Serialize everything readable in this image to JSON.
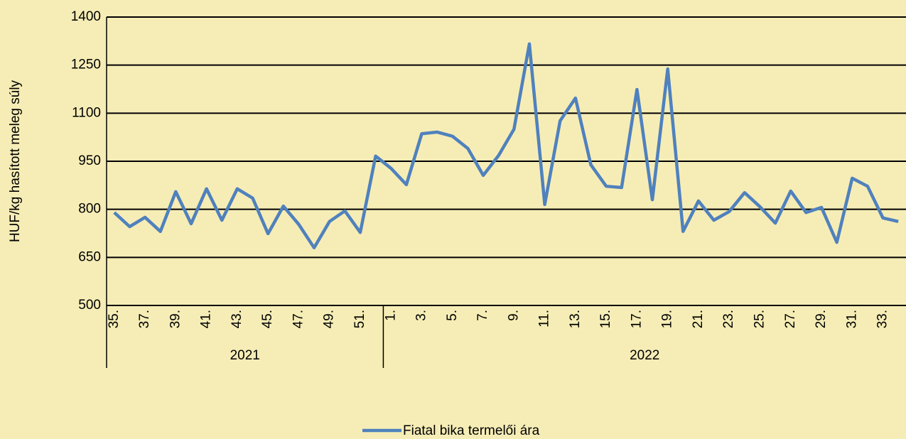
{
  "chart_data": {
    "type": "line",
    "y_label": "HUF/kg hasított meleg súly",
    "category_groups": [
      {
        "label": "2021",
        "categories": [
          "35.",
          null,
          "37.",
          null,
          "39.",
          null,
          "41.",
          null,
          "43.",
          null,
          "45.",
          null,
          "47.",
          null,
          "49.",
          null,
          "51.",
          null
        ]
      },
      {
        "label": "2022",
        "categories": [
          "1.",
          null,
          "3.",
          null,
          "5.",
          null,
          "7.",
          null,
          "9.",
          null,
          "11.",
          null,
          "13.",
          null,
          "15.",
          null,
          "17.",
          null,
          "19.",
          null,
          "21.",
          null,
          "23.",
          null,
          "25.",
          null,
          "27.",
          null,
          "29.",
          null,
          "31.",
          null,
          "33.",
          null
        ]
      }
    ],
    "series": [
      {
        "name": "Fiatal bika termelői ára",
        "color": "#4f81bd",
        "values": [
          790,
          746,
          775,
          731,
          855,
          755,
          864,
          766,
          864,
          835,
          724,
          810,
          753,
          680,
          762,
          795,
          728,
          966,
          928,
          877,
          1036,
          1041,
          1028,
          990,
          906,
          968,
          1050,
          1316,
          815,
          1076,
          1147,
          939,
          872,
          868,
          1174,
          830,
          1238,
          731,
          826,
          766,
          793,
          852,
          808,
          757,
          857,
          790,
          806,
          697,
          897,
          872,
          773,
          762
        ]
      }
    ],
    "ylim": [
      500,
      1400
    ],
    "yticks": [
      500,
      650,
      800,
      950,
      1100,
      1250,
      1400
    ],
    "grid": true,
    "legend": "bottom"
  }
}
